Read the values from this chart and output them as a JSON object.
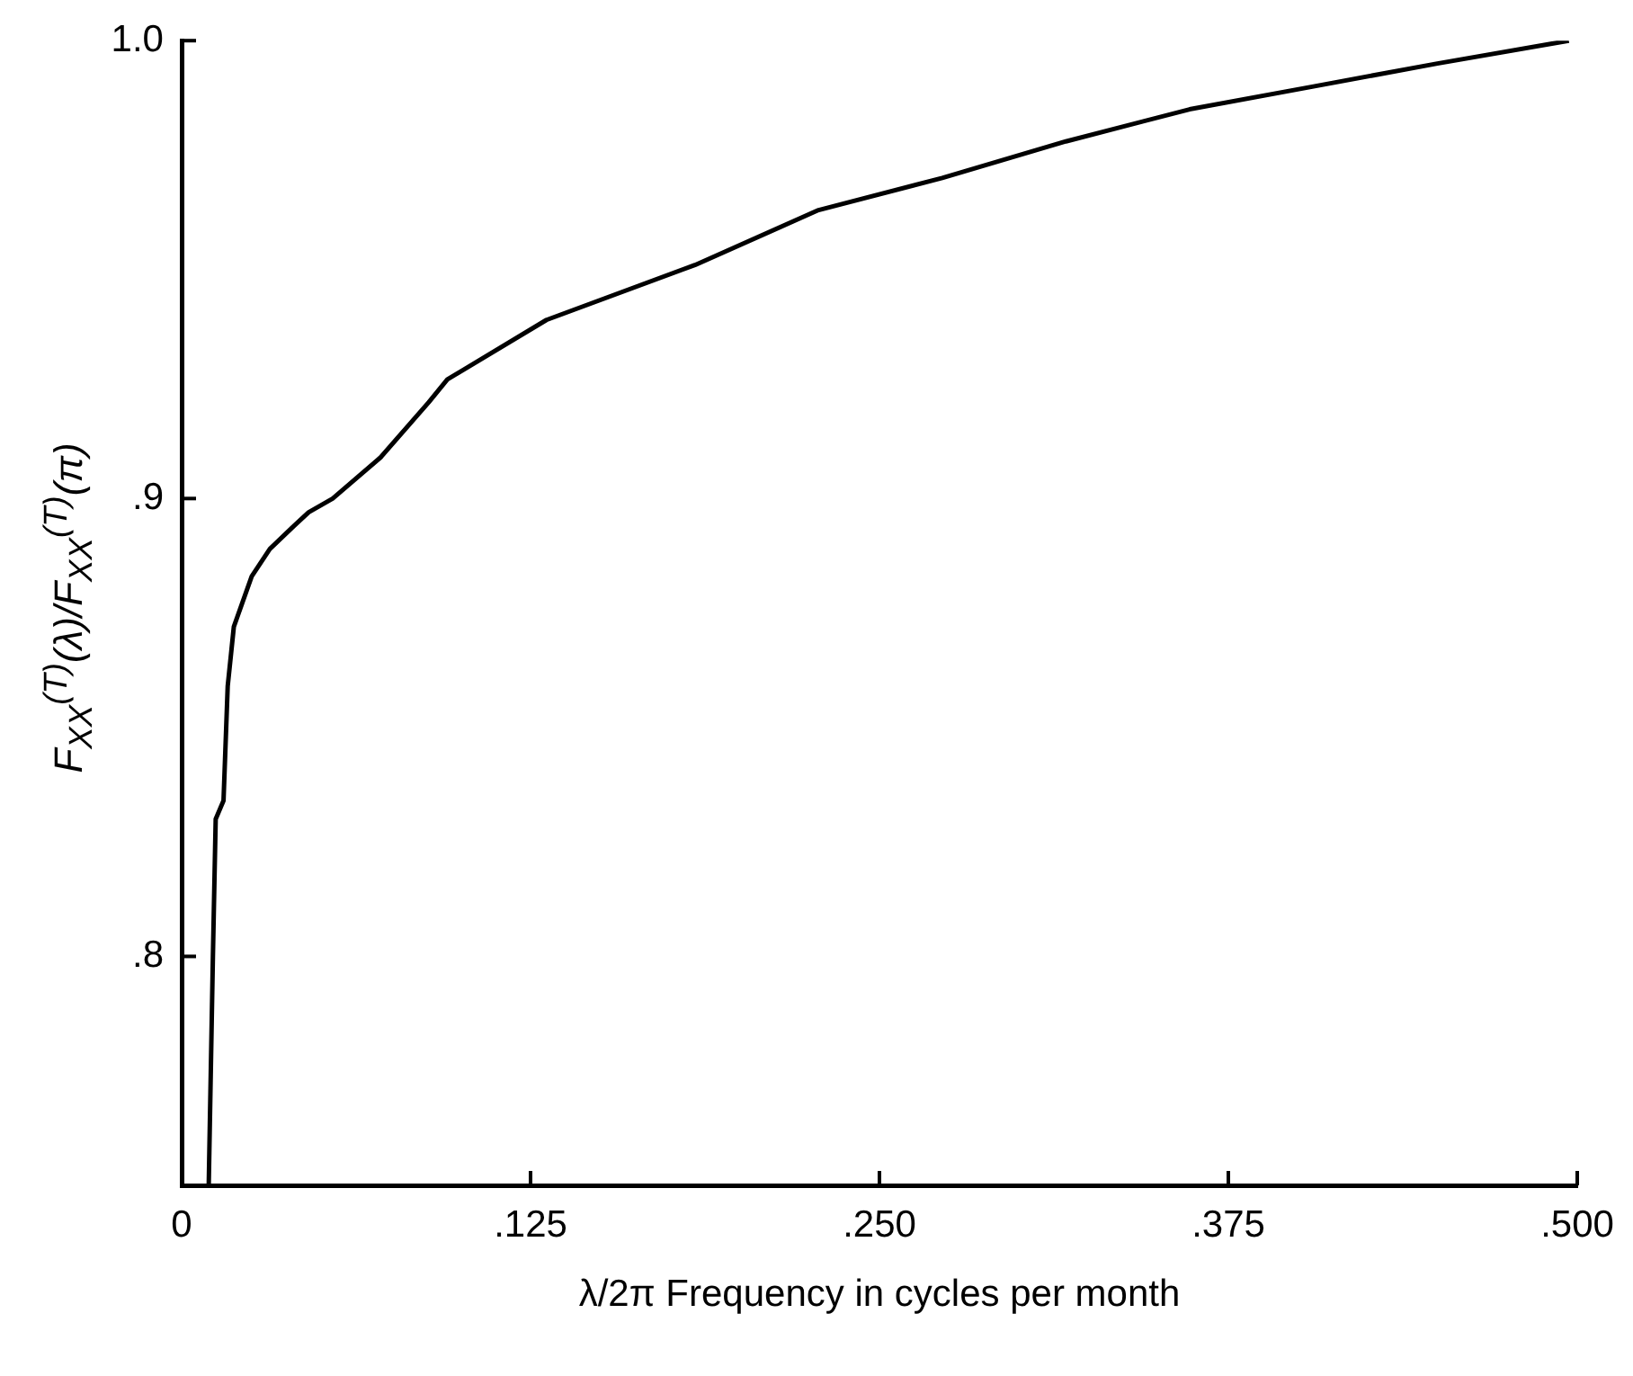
{
  "chart_data": {
    "type": "line",
    "xlabel": "λ/2π Frequency in cycles per month",
    "ylabel": "F$_{XX}$$^{(T)}$(λ)/F$_{XX}$$^{(T)}$(π)",
    "color": "#000000",
    "x": [
      0.0097,
      0.0112,
      0.0122,
      0.015,
      0.0165,
      0.0187,
      0.0251,
      0.0316,
      0.0402,
      0.0455,
      0.0541,
      0.0713,
      0.0885,
      0.0952,
      0.1307,
      0.1839,
      0.2282,
      0.2725,
      0.3168,
      0.3611,
      0.4055,
      0.4499,
      0.497
    ],
    "values": [
      0.75,
      0.8,
      0.83,
      0.834,
      0.859,
      0.872,
      0.883,
      0.889,
      0.894,
      0.897,
      0.9,
      0.909,
      0.921,
      0.926,
      0.939,
      0.951,
      0.963,
      0.97,
      0.978,
      0.985,
      0.99,
      0.995,
      1.0
    ],
    "xlim": [
      0,
      0.5
    ],
    "xticks": [
      0,
      {
        "value": 0.125,
        "label": ".125"
      },
      {
        "value": 0.25,
        "label": ".250"
      },
      {
        "value": 0.375,
        "label": ".375"
      },
      {
        "value": 0.5,
        "label": ".500"
      }
    ],
    "ylim": [
      0.75,
      1.0
    ],
    "yticks": [
      {
        "value": 0.8,
        "label": ".8"
      },
      {
        "value": 0.9,
        "label": ".9"
      },
      {
        "value": 1,
        "label": "1.0"
      }
    ],
    "grid": false
  }
}
